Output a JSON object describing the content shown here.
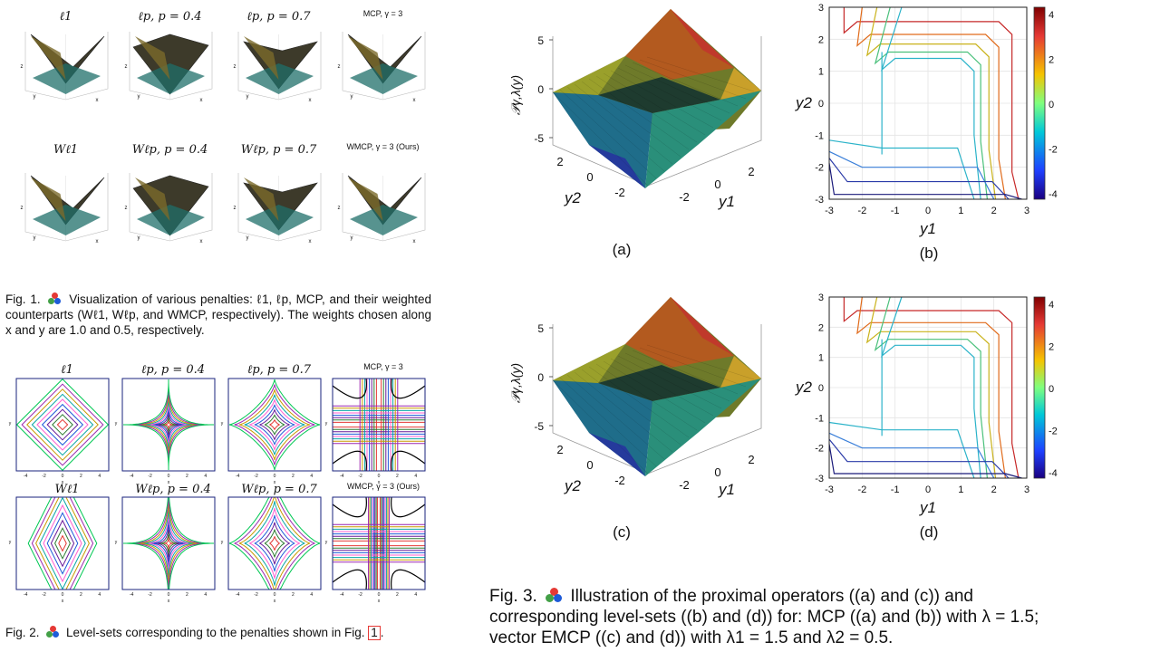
{
  "fig1": {
    "row1_titles": [
      "ℓ1",
      "ℓp, p = 0.4",
      "ℓp, p = 0.7",
      "MCP, γ = 3"
    ],
    "row2_titles": [
      "Wℓ1",
      "Wℓp, p = 0.4",
      "Wℓp, p = 0.7",
      "WMCP, γ = 3 (Ours)"
    ],
    "caption_label": "Fig. 1.",
    "caption_text": "Visualization of various penalties: ℓ1, ℓp, MCP, and their weighted counterparts (Wℓ1, Wℓp, and WMCP, respectively). The weights chosen along x and y are 1.0 and 0.5, respectively."
  },
  "fig2": {
    "row1_titles": [
      "ℓ1",
      "ℓp, p = 0.4",
      "ℓp, p = 0.7",
      "MCP, γ = 3"
    ],
    "row2_titles": [
      "Wℓ1",
      "Wℓp, p = 0.4",
      "Wℓp, p = 0.7",
      "WMCP, γ = 3 (Ours)"
    ],
    "caption_label": "Fig. 2.",
    "caption_text": "Level-sets corresponding to the penalties shown in Fig.",
    "caption_ref": "1",
    "caption_end": "."
  },
  "fig3": {
    "surface_zlabel": "𝒫γ,λ(y)",
    "z_ticks": [
      "5",
      "0",
      "-5"
    ],
    "y2_ticks": [
      "2",
      "0",
      "-2"
    ],
    "y1_ticks": [
      "-2",
      "0",
      "2"
    ],
    "y1_label": "y1",
    "y2_label": "y2",
    "contour_xticks": [
      "-3",
      "-2",
      "-1",
      "0",
      "1",
      "2",
      "3"
    ],
    "contour_yticks": [
      "3",
      "2",
      "1",
      "0",
      "-1",
      "-2",
      "-3"
    ],
    "colorbar_ticks": [
      "4",
      "2",
      "0",
      "-2",
      "-4"
    ],
    "sublabels": [
      "(a)",
      "(b)",
      "(c)",
      "(d)"
    ],
    "caption_label": "Fig. 3.",
    "caption_text": "Illustration of the proximal operators ((a) and (c)) and corresponding level-sets ((b) and (d)) for: MCP ((a) and (b)) with λ = 1.5; vector EMCP ((c) and (d)) with λ1 = 1.5 and λ2 = 0.5."
  }
}
